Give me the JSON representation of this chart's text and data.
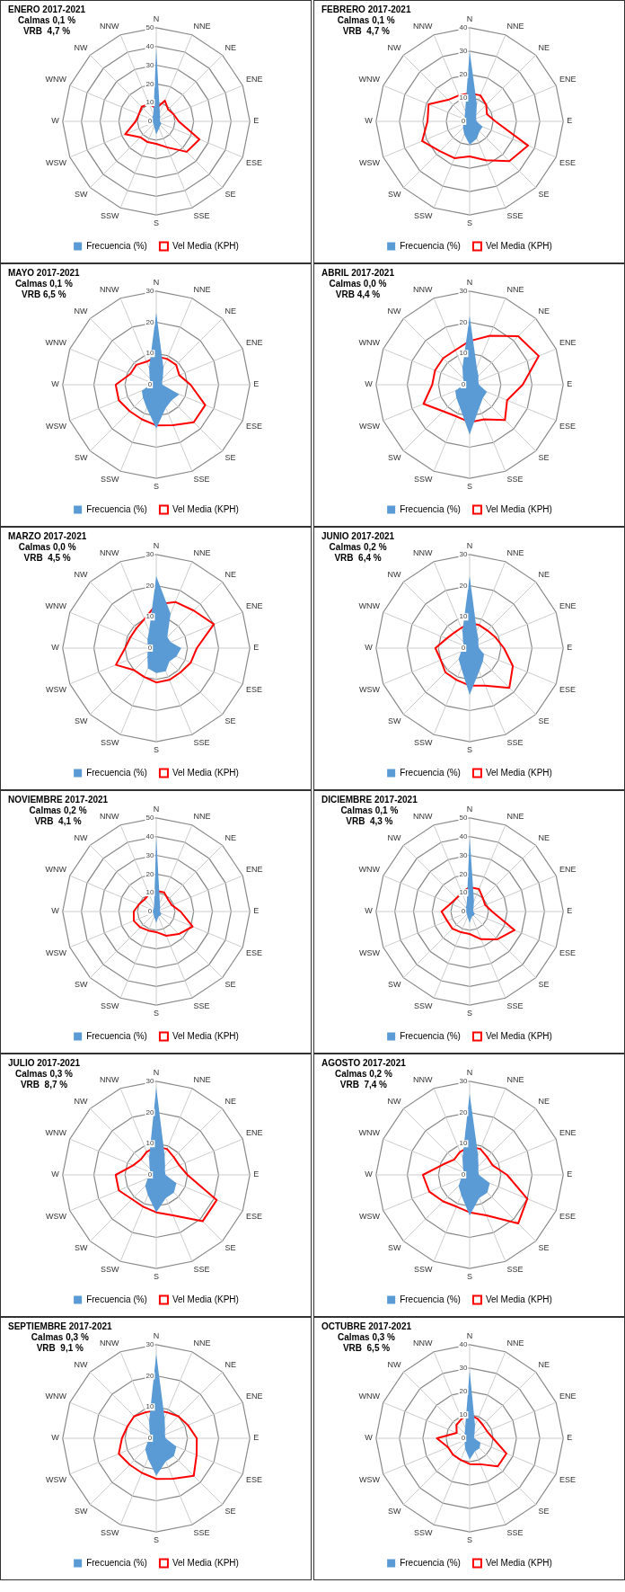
{
  "chart_data": [
    {
      "type": "radar",
      "title": "ENERO 2017-2021",
      "subtitle": "Calmas 0,1 %",
      "annotations": [
        "VRB  4,7 %"
      ],
      "categories": [
        "N",
        "NNE",
        "NE",
        "ENE",
        "E",
        "ESE",
        "SE",
        "SSE",
        "S",
        "SSW",
        "SW",
        "WSW",
        "W",
        "WNW",
        "NW",
        "NNW"
      ],
      "ylim": [
        0,
        50
      ],
      "yticks": [
        0,
        10,
        20,
        30,
        40,
        50
      ],
      "grid": true,
      "legend": "bottom",
      "marker": "none",
      "series": [
        {
          "name": "Frecuencia (%)",
          "color": "#5b9bd5",
          "values": [
            39,
            5,
            3,
            2,
            2,
            3,
            3,
            4,
            7,
            3,
            2,
            2,
            2,
            2,
            3,
            4
          ]
        },
        {
          "name": "Vel Media (KPH)",
          "color": "#ff0000",
          "values": [
            7,
            12,
            9,
            10,
            12,
            25,
            23,
            15,
            12,
            12,
            12,
            18,
            11,
            10,
            11,
            10
          ]
        }
      ]
    },
    {
      "type": "radar",
      "title": "FEBRERO 2017-2021",
      "subtitle": "Calmas 0,1 %",
      "annotations": [
        "VRB  4,7 %"
      ],
      "categories": [
        "N",
        "NNE",
        "NE",
        "ENE",
        "E",
        "ESE",
        "SE",
        "SSE",
        "S",
        "SSW",
        "SW",
        "WSW",
        "W",
        "WNW",
        "NW",
        "NNW"
      ],
      "ylim": [
        0,
        40
      ],
      "yticks": [
        0,
        10,
        20,
        30,
        40
      ],
      "grid": true,
      "legend": "bottom",
      "marker": "none",
      "series": [
        {
          "name": "Frecuencia (%)",
          "color": "#5b9bd5",
          "values": [
            30,
            8,
            4,
            3,
            3,
            6,
            6,
            8,
            10,
            6,
            4,
            3,
            2,
            2,
            3,
            5
          ]
        },
        {
          "name": "Vel Media (KPH)",
          "color": "#ff0000",
          "values": [
            12,
            12,
            10,
            8,
            11,
            27,
            24,
            18,
            15,
            17,
            18,
            22,
            18,
            19,
            13,
            12
          ]
        }
      ]
    },
    {
      "type": "radar",
      "title": "MAYO 2017-2021",
      "subtitle": "Calmas 0,1 %",
      "annotations": [
        "VRB 6,5 %"
      ],
      "categories": [
        "N",
        "NNE",
        "NE",
        "ENE",
        "E",
        "ESE",
        "SE",
        "SSE",
        "S",
        "SSW",
        "SW",
        "WSW",
        "W",
        "WNW",
        "NW",
        "NNW"
      ],
      "ylim": [
        0,
        30
      ],
      "yticks": [
        0,
        10,
        20,
        30
      ],
      "grid": true,
      "legend": "bottom",
      "marker": "none",
      "series": [
        {
          "name": "Frecuencia (%)",
          "color": "#5b9bd5",
          "values": [
            23,
            6,
            3,
            2,
            2,
            8,
            7,
            8,
            14,
            8,
            6,
            5,
            2,
            2,
            3,
            6
          ]
        },
        {
          "name": "Vel Media (KPH)",
          "color": "#ff0000",
          "values": [
            9,
            9,
            9,
            8,
            11,
            17,
            17,
            14,
            13,
            12,
            12,
            13,
            13,
            9,
            9,
            8
          ]
        }
      ]
    },
    {
      "type": "radar",
      "title": "ABRIL 2017-2021",
      "subtitle": "Calmas 0,0 %",
      "annotations": [
        "VRB 4,4 %"
      ],
      "categories": [
        "N",
        "NNE",
        "NE",
        "ENE",
        "E",
        "ESE",
        "SE",
        "SSE",
        "S",
        "SSW",
        "SW",
        "WSW",
        "W",
        "WNW",
        "NW",
        "NNW"
      ],
      "ylim": [
        0,
        30
      ],
      "yticks": [
        0,
        10,
        20,
        30
      ],
      "grid": true,
      "legend": "bottom",
      "marker": "none",
      "series": [
        {
          "name": "Frecuencia (%)",
          "color": "#5b9bd5",
          "values": [
            22,
            6,
            4,
            3,
            3,
            6,
            6,
            8,
            16,
            8,
            6,
            5,
            2,
            2,
            3,
            6
          ]
        },
        {
          "name": "Vel Media (KPH)",
          "color": "#ff0000",
          "values": [
            14,
            17,
            22,
            24,
            17,
            13,
            16,
            12,
            12,
            11,
            12,
            16,
            12,
            12,
            12,
            12
          ]
        }
      ]
    },
    {
      "type": "radar",
      "title": "MARZO 2017-2021",
      "subtitle": "Calmas 0,0 %",
      "annotations": [
        "VRB  4,5 %"
      ],
      "categories": [
        "N",
        "NNE",
        "NE",
        "ENE",
        "E",
        "ESE",
        "SE",
        "SSE",
        "S",
        "SSW",
        "SW",
        "WSW",
        "W",
        "WNW",
        "NW",
        "NNW"
      ],
      "ylim": [
        0,
        30
      ],
      "yticks": [
        0,
        10,
        20,
        30
      ],
      "grid": true,
      "legend": "bottom",
      "marker": "none",
      "series": [
        {
          "name": "Frecuencia (%)",
          "color": "#5b9bd5",
          "values": [
            23,
            12,
            5,
            5,
            8,
            7,
            6,
            8,
            8,
            7,
            4,
            3,
            2,
            3,
            4,
            6
          ]
        },
        {
          "name": "Vel Media (KPH)",
          "color": "#ff0000",
          "values": [
            14,
            16,
            17,
            20,
            13,
            12,
            11,
            11,
            11,
            10,
            10,
            14,
            10,
            9,
            9,
            10
          ]
        }
      ]
    },
    {
      "type": "radar",
      "title": "JUNIO 2017-2021",
      "subtitle": "Calmas 0,2 %",
      "annotations": [
        "VRB  6,4 %"
      ],
      "categories": [
        "N",
        "NNE",
        "NE",
        "ENE",
        "E",
        "ESE",
        "SE",
        "SSE",
        "S",
        "SSW",
        "SW",
        "WSW",
        "W",
        "WNW",
        "NW",
        "NNW"
      ],
      "ylim": [
        0,
        30
      ],
      "yticks": [
        0,
        10,
        20,
        30
      ],
      "grid": true,
      "legend": "bottom",
      "marker": "none",
      "series": [
        {
          "name": "Frecuencia (%)",
          "color": "#5b9bd5",
          "values": [
            23,
            6,
            4,
            3,
            3,
            5,
            6,
            8,
            15,
            7,
            5,
            3,
            2,
            2,
            3,
            6
          ]
        },
        {
          "name": "Vel Media (KPH)",
          "color": "#ff0000",
          "values": [
            8,
            8,
            8,
            9,
            11,
            15,
            18,
            13,
            12,
            11,
            11,
            10,
            11,
            8,
            7,
            7
          ]
        }
      ]
    },
    {
      "type": "radar",
      "title": "NOVIEMBRE 2017-2021",
      "subtitle": "Calmas 0,2 %",
      "annotations": [
        "VRB  4,1 %"
      ],
      "categories": [
        "N",
        "NNE",
        "NE",
        "ENE",
        "E",
        "ESE",
        "SE",
        "SSE",
        "S",
        "SSW",
        "SW",
        "WSW",
        "W",
        "WNW",
        "NW",
        "NNW"
      ],
      "ylim": [
        0,
        50
      ],
      "yticks": [
        0,
        10,
        20,
        30,
        40,
        50
      ],
      "grid": true,
      "legend": "bottom",
      "marker": "none",
      "series": [
        {
          "name": "Frecuencia (%)",
          "color": "#5b9bd5",
          "values": [
            40,
            5,
            3,
            2,
            2,
            3,
            3,
            3,
            6,
            3,
            2,
            2,
            2,
            2,
            2,
            3
          ]
        },
        {
          "name": "Vel Media (KPH)",
          "color": "#ff0000",
          "values": [
            11,
            11,
            9,
            9,
            13,
            21,
            17,
            14,
            11,
            11,
            12,
            13,
            12,
            10,
            9,
            10
          ]
        }
      ]
    },
    {
      "type": "radar",
      "title": "DICIEMBRE 2017-2021",
      "subtitle": "Calmas 0,1 %",
      "annotations": [
        "VRB  4,3 %"
      ],
      "categories": [
        "N",
        "NNE",
        "NE",
        "ENE",
        "E",
        "ESE",
        "SE",
        "SSE",
        "S",
        "SSW",
        "SW",
        "WSW",
        "W",
        "WNW",
        "NW",
        "NNW"
      ],
      "ylim": [
        0,
        50
      ],
      "yticks": [
        0,
        10,
        20,
        30,
        40,
        50
      ],
      "grid": true,
      "legend": "bottom",
      "marker": "none",
      "series": [
        {
          "name": "Frecuencia (%)",
          "color": "#5b9bd5",
          "values": [
            40,
            6,
            3,
            2,
            2,
            3,
            3,
            3,
            6,
            3,
            2,
            2,
            2,
            2,
            3,
            4
          ]
        },
        {
          "name": "Vel Media (KPH)",
          "color": "#ff0000",
          "values": [
            13,
            13,
            10,
            9,
            12,
            26,
            21,
            16,
            12,
            12,
            13,
            13,
            15,
            11,
            10,
            11
          ]
        }
      ]
    },
    {
      "type": "radar",
      "title": "JULIO 2017-2021",
      "subtitle": "Calmas 0,3 %",
      "annotations": [
        "VRB  8,7 %"
      ],
      "categories": [
        "N",
        "NNE",
        "NE",
        "ENE",
        "E",
        "ESE",
        "SE",
        "SSE",
        "S",
        "SSW",
        "SW",
        "WSW",
        "W",
        "WNW",
        "NW",
        "NNW"
      ],
      "ylim": [
        0,
        30
      ],
      "yticks": [
        0,
        10,
        20,
        30
      ],
      "grid": true,
      "legend": "bottom",
      "marker": "none",
      "series": [
        {
          "name": "Frecuencia (%)",
          "color": "#5b9bd5",
          "values": [
            28,
            7,
            4,
            3,
            3,
            7,
            8,
            8,
            12,
            7,
            5,
            3,
            2,
            2,
            3,
            6
          ]
        },
        {
          "name": "Vel Media (KPH)",
          "color": "#ff0000",
          "values": [
            9,
            9,
            8,
            8,
            10,
            21,
            21,
            14,
            12,
            11,
            11,
            13,
            13,
            8,
            7,
            8
          ]
        }
      ]
    },
    {
      "type": "radar",
      "title": "AGOSTO 2017-2021",
      "subtitle": "Calmas 0,2 %",
      "annotations": [
        "VRB  7,4 %"
      ],
      "categories": [
        "N",
        "NNE",
        "NE",
        "ENE",
        "E",
        "ESE",
        "SE",
        "SSE",
        "S",
        "SSW",
        "SW",
        "WSW",
        "W",
        "WNW",
        "NW",
        "NNW"
      ],
      "ylim": [
        0,
        30
      ],
      "yticks": [
        0,
        10,
        20,
        30
      ],
      "grid": true,
      "legend": "bottom",
      "marker": "none",
      "series": [
        {
          "name": "Frecuencia (%)",
          "color": "#5b9bd5",
          "values": [
            26,
            7,
            4,
            3,
            3,
            7,
            8,
            8,
            13,
            7,
            5,
            3,
            2,
            2,
            3,
            6
          ]
        },
        {
          "name": "Vel Media (KPH)",
          "color": "#ff0000",
          "values": [
            9,
            9,
            8,
            8,
            12,
            20,
            22,
            14,
            12,
            11,
            12,
            14,
            15,
            9,
            7,
            8
          ]
        }
      ]
    },
    {
      "type": "radar",
      "title": "SEPTIEMBRE 2017-2021",
      "subtitle": "Calmas 0,3 %",
      "annotations": [
        "VRB  9,1 %"
      ],
      "categories": [
        "N",
        "NNE",
        "NE",
        "ENE",
        "E",
        "ESE",
        "SE",
        "SSE",
        "S",
        "SSW",
        "SW",
        "WSW",
        "W",
        "WNW",
        "NW",
        "NNW"
      ],
      "ylim": [
        0,
        30
      ],
      "yticks": [
        0,
        10,
        20,
        30
      ],
      "grid": true,
      "legend": "bottom",
      "marker": "none",
      "series": [
        {
          "name": "Frecuencia (%)",
          "color": "#5b9bd5",
          "values": [
            27,
            7,
            4,
            3,
            3,
            7,
            8,
            8,
            12,
            7,
            5,
            3,
            2,
            2,
            3,
            6
          ]
        },
        {
          "name": "Vel Media (KPH)",
          "color": "#ff0000",
          "values": [
            9,
            9,
            10,
            11,
            13,
            14,
            17,
            14,
            13,
            12,
            12,
            13,
            11,
            10,
            10,
            9
          ]
        }
      ]
    },
    {
      "type": "radar",
      "title": "OCTUBRE 2017-2021",
      "subtitle": "Calmas 0,3 %",
      "annotations": [
        "VRB  6,5 %"
      ],
      "categories": [
        "N",
        "NNE",
        "NE",
        "ENE",
        "E",
        "ESE",
        "SE",
        "SSE",
        "S",
        "SSW",
        "SW",
        "WSW",
        "W",
        "WNW",
        "NW",
        "NNW"
      ],
      "ylim": [
        0,
        40
      ],
      "yticks": [
        0,
        10,
        20,
        30,
        40
      ],
      "grid": true,
      "legend": "bottom",
      "marker": "none",
      "series": [
        {
          "name": "Frecuencia (%)",
          "color": "#5b9bd5",
          "values": [
            29,
            6,
            3,
            2,
            2,
            5,
            6,
            6,
            9,
            5,
            3,
            2,
            2,
            2,
            3,
            5
          ]
        },
        {
          "name": "Vel Media (KPH)",
          "color": "#ff0000",
          "values": [
            10,
            9,
            8,
            8,
            10,
            17,
            17,
            12,
            11,
            10,
            10,
            10,
            14,
            6,
            8,
            9
          ]
        }
      ]
    }
  ]
}
